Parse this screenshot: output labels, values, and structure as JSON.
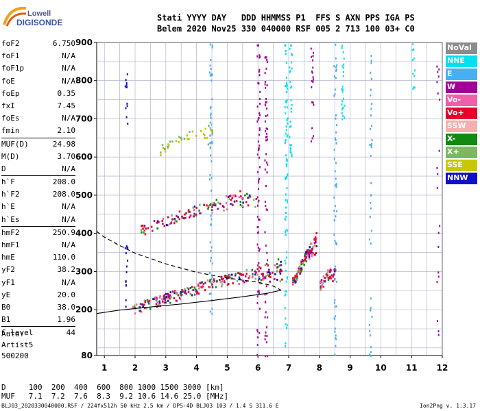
{
  "logo": {
    "line1": "Lowell",
    "line2": "DIGISONDE"
  },
  "header": {
    "line1": "Stati YYYY DAY   DDD HHMMSS P1  FFS S AXN PPS IGA PS",
    "line2": "Belem 2020 Nov25 330 040000 RSF 005 2 713 100 03+ C0"
  },
  "params": [
    {
      "name": "foF2",
      "value": "6.750"
    },
    {
      "name": "foF1",
      "value": "N/A"
    },
    {
      "name": "foF1p",
      "value": "N/A"
    },
    {
      "name": "foE",
      "value": "N/A"
    },
    {
      "name": "foEp",
      "value": "0.35"
    },
    {
      "name": "fxI",
      "value": "7.45"
    },
    {
      "name": "foEs",
      "value": "N/A"
    },
    {
      "name": "fmin",
      "value": "2.10"
    },
    {
      "name": "MUF(D)",
      "value": "24.98",
      "sep": true
    },
    {
      "name": "M(D)",
      "value": "3.70"
    },
    {
      "name": "D",
      "value": "N/A"
    },
    {
      "name": "h`F",
      "value": "208.0",
      "sep": true
    },
    {
      "name": "h`F2",
      "value": "208.0"
    },
    {
      "name": "h`E",
      "value": "N/A"
    },
    {
      "name": "h`Es",
      "value": "N/A"
    },
    {
      "name": "hmF2",
      "value": "250.9",
      "sep": true
    },
    {
      "name": "hmF1",
      "value": "N/A"
    },
    {
      "name": "hmE",
      "value": "110.0"
    },
    {
      "name": "yF2",
      "value": "38.2"
    },
    {
      "name": "yF1",
      "value": "N/A"
    },
    {
      "name": "yE",
      "value": "20.0"
    },
    {
      "name": "B0",
      "value": "38.0"
    },
    {
      "name": "B1",
      "value": "1.96"
    },
    {
      "name": "C-level",
      "value": "44",
      "sep": true
    }
  ],
  "auto": {
    "label": "Auto:",
    "artist": "Artist5",
    "version": "500200"
  },
  "legend": [
    {
      "label": "NoVal",
      "color": "#8c8c8c"
    },
    {
      "label": "NNE",
      "color": "#00e0f0"
    },
    {
      "label": "E",
      "color": "#48b0f0"
    },
    {
      "label": "W",
      "color": "#a00098"
    },
    {
      "label": "Vo-",
      "color": "#f060a8"
    },
    {
      "label": "Vo+",
      "color": "#e8002c"
    },
    {
      "label": "SSW",
      "color": "#f4b0b0"
    },
    {
      "label": "X-",
      "color": "#128a12"
    },
    {
      "label": "X+",
      "color": "#7cb860"
    },
    {
      "label": "SSE",
      "color": "#c8c800"
    },
    {
      "label": "NNW",
      "color": "#1010c8"
    }
  ],
  "muf_table": {
    "d_line": "D     100  200  400  600  800 1000 1500 3000 [km]",
    "muf_line": "MUF   7.1  7.2  7.6  8.3  9.2 10.6 14.6 25.0 [MHz]"
  },
  "footer": {
    "left": "BLJ03_2020330040000.RSF / 224fx512h 50 kHz 2.5 km / DPS-4D BLJ03 103 / 1.4 S 311.6 E",
    "right": "Ion2Png v. 1.3.17"
  },
  "chart_data": {
    "type": "scatter",
    "title": "",
    "xlabel": "",
    "ylabel": "",
    "xlim": [
      0.75,
      12
    ],
    "ylim": [
      80,
      900
    ],
    "x_ticks": [
      1,
      2,
      3,
      4,
      5,
      6,
      7,
      8,
      9,
      10,
      11,
      12
    ],
    "y_ticks": [
      80,
      200,
      300,
      400,
      500,
      600,
      700,
      800,
      900
    ],
    "grid": true,
    "curves": {
      "profile_solid": {
        "x": [
          0.75,
          1.5,
          2.5,
          3.5,
          4.5,
          5.5,
          6.3,
          6.75
        ],
        "y": [
          190,
          199,
          207,
          215,
          224,
          234,
          243,
          251
        ]
      },
      "profile_dashed": {
        "x": [
          0.75,
          1.0,
          1.5,
          2.0,
          3.0,
          4.0,
          5.0,
          6.0,
          6.5,
          6.75
        ],
        "y": [
          405,
          390,
          368,
          348,
          320,
          298,
          283,
          272,
          262,
          251
        ]
      }
    },
    "traces": [
      {
        "name": "F2 O-trace",
        "color": "#e8002c",
        "x1": 1.9,
        "x2": 6.8,
        "y1": 203,
        "y2": 330,
        "n": 260
      },
      {
        "name": "F2 second-hop",
        "color": "#e8002c",
        "x1": 2.1,
        "x2": 6.0,
        "y1": 408,
        "y2": 520,
        "n": 130
      },
      {
        "name": "third-hop",
        "color": "#7cb860",
        "x1": 2.8,
        "x2": 4.5,
        "y1": 620,
        "y2": 690,
        "n": 40
      },
      {
        "name": "X-trace",
        "color": "#e8002c",
        "x1": 7.1,
        "x2": 7.9,
        "y1": 270,
        "y2": 400,
        "n": 110
      },
      {
        "name": "X-trace 2",
        "color": "#e8002c",
        "x1": 8.0,
        "x2": 8.5,
        "y1": 265,
        "y2": 320,
        "n": 40
      }
    ]
  }
}
